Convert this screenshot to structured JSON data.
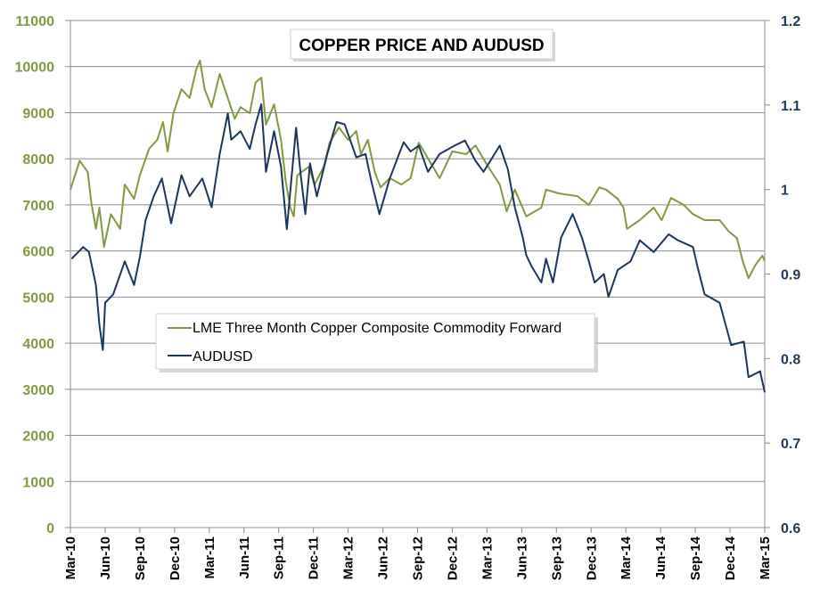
{
  "chart_data": {
    "type": "line",
    "title": "COPPER PRICE AND AUDUSD",
    "x_unit": "months since Mar-10",
    "x_tick_labels": [
      "Mar-10",
      "Jun-10",
      "Sep-10",
      "Dec-10",
      "Mar-11",
      "Jun-11",
      "Sep-11",
      "Dec-11",
      "Mar-12",
      "Jun-12",
      "Sep-12",
      "Dec-12",
      "Mar-13",
      "Jun-13",
      "Sep-13",
      "Dec-13",
      "Mar-14",
      "Jun-14",
      "Sep-14",
      "Dec-14",
      "Mar-15"
    ],
    "xlim": [
      0,
      60
    ],
    "y_left": {
      "ticks": [
        0,
        1000,
        2000,
        3000,
        4000,
        5000,
        6000,
        7000,
        8000,
        9000,
        10000,
        11000
      ],
      "lim": [
        0,
        11000
      ],
      "color": "#7f9a3f"
    },
    "y_right": {
      "ticks": [
        0.6,
        0.7,
        0.8,
        0.9,
        1,
        1.1,
        1.2
      ],
      "lim": [
        0.6,
        1.2
      ],
      "color": "#1f3a5f"
    },
    "grid": true,
    "legend_placement": "center-left",
    "series": [
      {
        "name": "LME Three Month Copper Composite Commodity Forward",
        "axis": "left",
        "color": "#7f9a3f",
        "points": [
          [
            0,
            7330
          ],
          [
            0.8,
            7960
          ],
          [
            1.5,
            7710
          ],
          [
            1.8,
            7060
          ],
          [
            2.2,
            6480
          ],
          [
            2.5,
            6940
          ],
          [
            2.9,
            6090
          ],
          [
            3.5,
            6800
          ],
          [
            4.3,
            6480
          ],
          [
            4.7,
            7440
          ],
          [
            5.5,
            7130
          ],
          [
            6.0,
            7640
          ],
          [
            6.8,
            8220
          ],
          [
            7.5,
            8410
          ],
          [
            8.0,
            8800
          ],
          [
            8.4,
            8160
          ],
          [
            8.9,
            8990
          ],
          [
            9.6,
            9510
          ],
          [
            10.3,
            9320
          ],
          [
            10.9,
            9960
          ],
          [
            11.2,
            10130
          ],
          [
            11.6,
            9510
          ],
          [
            12.2,
            9120
          ],
          [
            12.9,
            9840
          ],
          [
            13.6,
            9320
          ],
          [
            14.2,
            8870
          ],
          [
            14.7,
            9120
          ],
          [
            15.5,
            8990
          ],
          [
            16.0,
            9650
          ],
          [
            16.5,
            9760
          ],
          [
            16.9,
            8740
          ],
          [
            17.6,
            9180
          ],
          [
            18.2,
            8410
          ],
          [
            18.6,
            7520
          ],
          [
            19.0,
            6940
          ],
          [
            19.3,
            6750
          ],
          [
            19.6,
            7640
          ],
          [
            20.6,
            7830
          ],
          [
            21.1,
            7440
          ],
          [
            21.9,
            7830
          ],
          [
            22.4,
            8350
          ],
          [
            23.2,
            8680
          ],
          [
            24.0,
            8410
          ],
          [
            24.7,
            8600
          ],
          [
            25.1,
            8100
          ],
          [
            25.7,
            8410
          ],
          [
            26.3,
            7710
          ],
          [
            26.8,
            7380
          ],
          [
            27.6,
            7580
          ],
          [
            28.6,
            7440
          ],
          [
            29.4,
            7580
          ],
          [
            30.1,
            8350
          ],
          [
            31.9,
            7580
          ],
          [
            33.0,
            8160
          ],
          [
            34.2,
            8100
          ],
          [
            35.0,
            8290
          ],
          [
            36.1,
            7830
          ],
          [
            37.1,
            7440
          ],
          [
            37.7,
            6860
          ],
          [
            38.4,
            7330
          ],
          [
            39.4,
            6750
          ],
          [
            40.7,
            6940
          ],
          [
            41.1,
            7330
          ],
          [
            42.2,
            7250
          ],
          [
            43.8,
            7190
          ],
          [
            44.8,
            7000
          ],
          [
            45.7,
            7380
          ],
          [
            46.3,
            7330
          ],
          [
            47.3,
            7130
          ],
          [
            47.8,
            6940
          ],
          [
            48.1,
            6480
          ],
          [
            49.2,
            6670
          ],
          [
            50.4,
            6940
          ],
          [
            51.1,
            6670
          ],
          [
            51.9,
            7150
          ],
          [
            53.0,
            7000
          ],
          [
            53.8,
            6800
          ],
          [
            54.8,
            6670
          ],
          [
            56.1,
            6670
          ],
          [
            56.9,
            6420
          ],
          [
            57.6,
            6280
          ],
          [
            58.1,
            5780
          ],
          [
            58.6,
            5410
          ],
          [
            59.2,
            5700
          ],
          [
            59.8,
            5900
          ],
          [
            60,
            5780
          ]
        ]
      },
      {
        "name": "AUDUSD",
        "axis": "right",
        "color": "#1b365d",
        "points": [
          [
            0.1,
            0.918
          ],
          [
            1.1,
            0.932
          ],
          [
            1.6,
            0.926
          ],
          [
            2.2,
            0.887
          ],
          [
            2.5,
            0.84
          ],
          [
            2.8,
            0.81
          ],
          [
            3.0,
            0.866
          ],
          [
            3.7,
            0.876
          ],
          [
            4.7,
            0.915
          ],
          [
            5.5,
            0.887
          ],
          [
            6.0,
            0.92
          ],
          [
            6.5,
            0.964
          ],
          [
            7.2,
            0.992
          ],
          [
            7.9,
            1.013
          ],
          [
            8.7,
            0.96
          ],
          [
            9.6,
            1.017
          ],
          [
            10.3,
            0.992
          ],
          [
            11.4,
            1.013
          ],
          [
            12.2,
            0.979
          ],
          [
            12.9,
            1.042
          ],
          [
            13.6,
            1.09
          ],
          [
            13.9,
            1.059
          ],
          [
            14.7,
            1.069
          ],
          [
            15.5,
            1.048
          ],
          [
            16.0,
            1.077
          ],
          [
            16.5,
            1.101
          ],
          [
            16.9,
            1.021
          ],
          [
            17.6,
            1.069
          ],
          [
            18.2,
            1.027
          ],
          [
            18.7,
            0.953
          ],
          [
            19.5,
            1.073
          ],
          [
            19.9,
            1.017
          ],
          [
            20.3,
            0.971
          ],
          [
            20.7,
            1.031
          ],
          [
            21.3,
            0.992
          ],
          [
            22.2,
            1.042
          ],
          [
            23.0,
            1.08
          ],
          [
            23.7,
            1.077
          ],
          [
            24.7,
            1.038
          ],
          [
            25.5,
            1.042
          ],
          [
            26.0,
            1.01
          ],
          [
            26.7,
            0.971
          ],
          [
            27.6,
            1.013
          ],
          [
            28.4,
            1.042
          ],
          [
            28.8,
            1.056
          ],
          [
            29.4,
            1.045
          ],
          [
            30.1,
            1.052
          ],
          [
            30.9,
            1.021
          ],
          [
            31.9,
            1.042
          ],
          [
            33.2,
            1.052
          ],
          [
            34.1,
            1.058
          ],
          [
            35.0,
            1.034
          ],
          [
            35.7,
            1.021
          ],
          [
            37.1,
            1.052
          ],
          [
            37.8,
            1.024
          ],
          [
            38.4,
            0.979
          ],
          [
            39.1,
            0.943
          ],
          [
            39.4,
            0.922
          ],
          [
            39.9,
            0.908
          ],
          [
            40.7,
            0.89
          ],
          [
            41.1,
            0.918
          ],
          [
            41.7,
            0.89
          ],
          [
            42.4,
            0.943
          ],
          [
            43.4,
            0.971
          ],
          [
            44.2,
            0.943
          ],
          [
            44.8,
            0.915
          ],
          [
            45.3,
            0.89
          ],
          [
            46.1,
            0.9
          ],
          [
            46.5,
            0.873
          ],
          [
            47.3,
            0.905
          ],
          [
            48.4,
            0.915
          ],
          [
            49.2,
            0.94
          ],
          [
            50.4,
            0.926
          ],
          [
            51.7,
            0.947
          ],
          [
            52.5,
            0.94
          ],
          [
            53.8,
            0.932
          ],
          [
            54.2,
            0.908
          ],
          [
            54.8,
            0.876
          ],
          [
            56.1,
            0.866
          ],
          [
            57.1,
            0.816
          ],
          [
            58.2,
            0.82
          ],
          [
            58.6,
            0.778
          ],
          [
            59.6,
            0.785
          ],
          [
            60,
            0.76
          ]
        ]
      }
    ]
  }
}
